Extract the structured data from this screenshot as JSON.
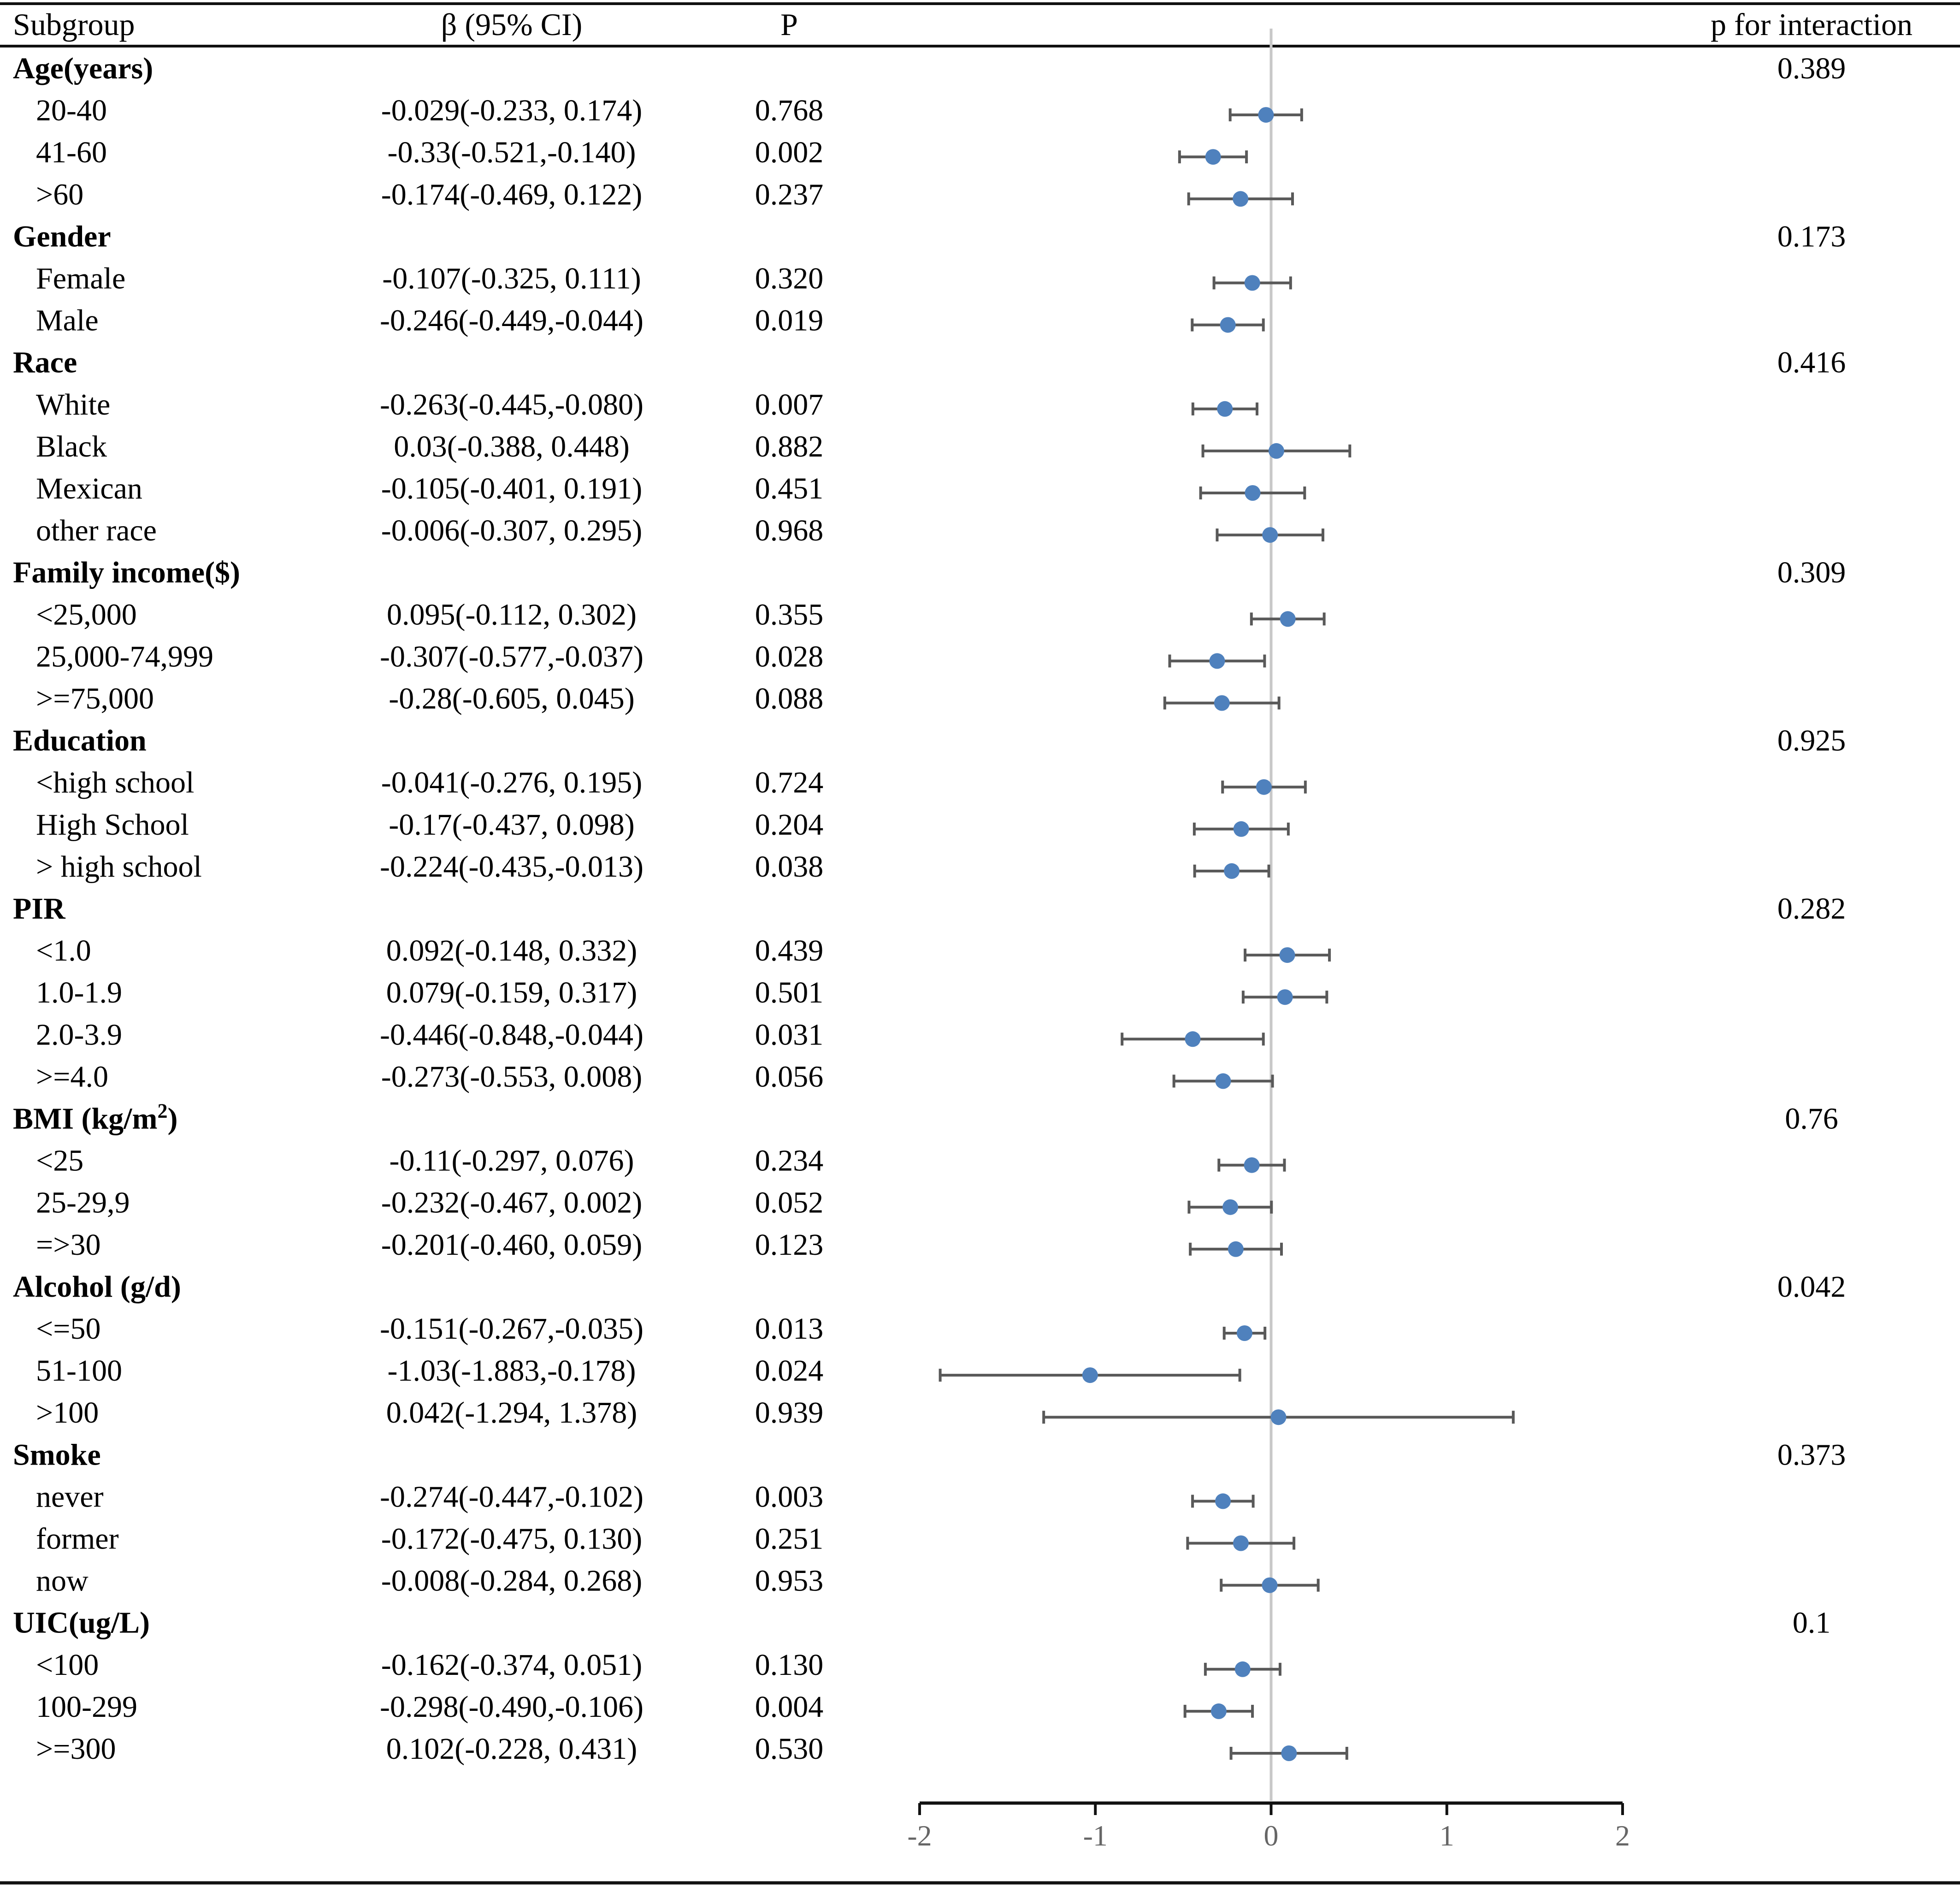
{
  "chart_data": {
    "type": "forest",
    "headers": {
      "subgroup": "Subgroup",
      "beta": "β (95% CI)",
      "p": "P",
      "p_interaction": "p for interaction"
    },
    "xlim": [
      -2,
      2
    ],
    "xticks": [
      "-2",
      "-1",
      "0",
      "1",
      "2"
    ],
    "reference_line": 0,
    "marker_color": "#4F81BD",
    "errorbar_color": "#595959",
    "groups": [
      {
        "label": "Age(years)",
        "p_interaction": "0.389",
        "rows": [
          {
            "label": "20-40",
            "ci_text": "-0.029(-0.233, 0.174)",
            "p": "0.768",
            "beta": -0.029,
            "lo": -0.233,
            "hi": 0.174
          },
          {
            "label": "41-60",
            "ci_text": "-0.33(-0.521,-0.140)",
            "p": "0.002",
            "beta": -0.33,
            "lo": -0.521,
            "hi": -0.14
          },
          {
            "label": ">60",
            "ci_text": "-0.174(-0.469, 0.122)",
            "p": "0.237",
            "beta": -0.174,
            "lo": -0.469,
            "hi": 0.122
          }
        ]
      },
      {
        "label": "Gender",
        "p_interaction": "0.173",
        "rows": [
          {
            "label": "Female",
            "ci_text": "-0.107(-0.325, 0.111)",
            "p": "0.320",
            "beta": -0.107,
            "lo": -0.325,
            "hi": 0.111
          },
          {
            "label": "Male",
            "ci_text": "-0.246(-0.449,-0.044)",
            "p": "0.019",
            "beta": -0.246,
            "lo": -0.449,
            "hi": -0.044
          }
        ]
      },
      {
        "label": "Race",
        "p_interaction": "0.416",
        "rows": [
          {
            "label": "White",
            "ci_text": "-0.263(-0.445,-0.080)",
            "p": "0.007",
            "beta": -0.263,
            "lo": -0.445,
            "hi": -0.08
          },
          {
            "label": "Black",
            "ci_text": "0.03(-0.388, 0.448)",
            "p": "0.882",
            "beta": 0.03,
            "lo": -0.388,
            "hi": 0.448
          },
          {
            "label": "Mexican",
            "ci_text": "-0.105(-0.401, 0.191)",
            "p": "0.451",
            "beta": -0.105,
            "lo": -0.401,
            "hi": 0.191
          },
          {
            "label": "other race",
            "ci_text": "-0.006(-0.307, 0.295)",
            "p": "0.968",
            "beta": -0.006,
            "lo": -0.307,
            "hi": 0.295
          }
        ]
      },
      {
        "label": "Family income($)",
        "p_interaction": "0.309",
        "rows": [
          {
            "label": "<25,000",
            "ci_text": "0.095(-0.112, 0.302)",
            "p": "0.355",
            "beta": 0.095,
            "lo": -0.112,
            "hi": 0.302
          },
          {
            "label": "25,000-74,999",
            "ci_text": "-0.307(-0.577,-0.037)",
            "p": "0.028",
            "beta": -0.307,
            "lo": -0.577,
            "hi": -0.037
          },
          {
            "label": ">=75,000",
            "ci_text": "-0.28(-0.605, 0.045)",
            "p": "0.088",
            "beta": -0.28,
            "lo": -0.605,
            "hi": 0.045
          }
        ]
      },
      {
        "label": "Education",
        "p_interaction": "0.925",
        "rows": [
          {
            "label": "<high school",
            "ci_text": "-0.041(-0.276, 0.195)",
            "p": "0.724",
            "beta": -0.041,
            "lo": -0.276,
            "hi": 0.195
          },
          {
            "label": "High School",
            "ci_text": "-0.17(-0.437, 0.098)",
            "p": "0.204",
            "beta": -0.17,
            "lo": -0.437,
            "hi": 0.098
          },
          {
            "label": "> high school",
            "ci_text": "-0.224(-0.435,-0.013)",
            "p": "0.038",
            "beta": -0.224,
            "lo": -0.435,
            "hi": -0.013
          }
        ]
      },
      {
        "label": "PIR",
        "p_interaction": "0.282",
        "rows": [
          {
            "label": "<1.0",
            "ci_text": "0.092(-0.148, 0.332)",
            "p": "0.439",
            "beta": 0.092,
            "lo": -0.148,
            "hi": 0.332
          },
          {
            "label": "1.0-1.9",
            "ci_text": "0.079(-0.159, 0.317)",
            "p": "0.501",
            "beta": 0.079,
            "lo": -0.159,
            "hi": 0.317
          },
          {
            "label": "2.0-3.9",
            "ci_text": "-0.446(-0.848,-0.044)",
            "p": "0.031",
            "beta": -0.446,
            "lo": -0.848,
            "hi": -0.044
          },
          {
            "label": ">=4.0",
            "ci_text": "-0.273(-0.553, 0.008)",
            "p": "0.056",
            "beta": -0.273,
            "lo": -0.553,
            "hi": 0.008
          }
        ]
      },
      {
        "label": "BMI (kg/m",
        "label_sup": "2",
        "label_end": ")",
        "p_interaction": "0.76",
        "rows": [
          {
            "label": "<25",
            "ci_text": "-0.11(-0.297, 0.076)",
            "p": "0.234",
            "beta": -0.11,
            "lo": -0.297,
            "hi": 0.076
          },
          {
            "label": "25-29,9",
            "ci_text": "-0.232(-0.467, 0.002)",
            "p": "0.052",
            "beta": -0.232,
            "lo": -0.467,
            "hi": 0.002
          },
          {
            "label": "=>30",
            "ci_text": "-0.201(-0.460, 0.059)",
            "p": "0.123",
            "beta": -0.201,
            "lo": -0.46,
            "hi": 0.059
          }
        ]
      },
      {
        "label": "Alcohol (g/d)",
        "p_interaction": "0.042",
        "rows": [
          {
            "label": "<=50",
            "ci_text": "-0.151(-0.267,-0.035)",
            "p": "0.013",
            "beta": -0.151,
            "lo": -0.267,
            "hi": -0.035
          },
          {
            "label": "51-100",
            "ci_text": "-1.03(-1.883,-0.178)",
            "p": "0.024",
            "beta": -1.03,
            "lo": -1.883,
            "hi": -0.178
          },
          {
            "label": ">100",
            "ci_text": "0.042(-1.294, 1.378)",
            "p": "0.939",
            "beta": 0.042,
            "lo": -1.294,
            "hi": 1.378
          }
        ]
      },
      {
        "label": "Smoke",
        "p_interaction": "0.373",
        "rows": [
          {
            "label": "never",
            "ci_text": "-0.274(-0.447,-0.102)",
            "p": "0.003",
            "beta": -0.274,
            "lo": -0.447,
            "hi": -0.102
          },
          {
            "label": "former",
            "ci_text": "-0.172(-0.475, 0.130)",
            "p": "0.251",
            "beta": -0.172,
            "lo": -0.475,
            "hi": 0.13
          },
          {
            "label": "now",
            "ci_text": "-0.008(-0.284, 0.268)",
            "p": "0.953",
            "beta": -0.008,
            "lo": -0.284,
            "hi": 0.268
          }
        ]
      },
      {
        "label": "UIC(ug/L)",
        "p_interaction": "0.1",
        "rows": [
          {
            "label": "<100",
            "ci_text": "-0.162(-0.374, 0.051)",
            "p": "0.130",
            "beta": -0.162,
            "lo": -0.374,
            "hi": 0.051
          },
          {
            "label": "100-299",
            "ci_text": "-0.298(-0.490,-0.106)",
            "p": "0.004",
            "beta": -0.298,
            "lo": -0.49,
            "hi": -0.106
          },
          {
            "label": ">=300",
            "ci_text": "0.102(-0.228, 0.431)",
            "p": "0.530",
            "beta": 0.102,
            "lo": -0.228,
            "hi": 0.431
          }
        ]
      }
    ]
  }
}
